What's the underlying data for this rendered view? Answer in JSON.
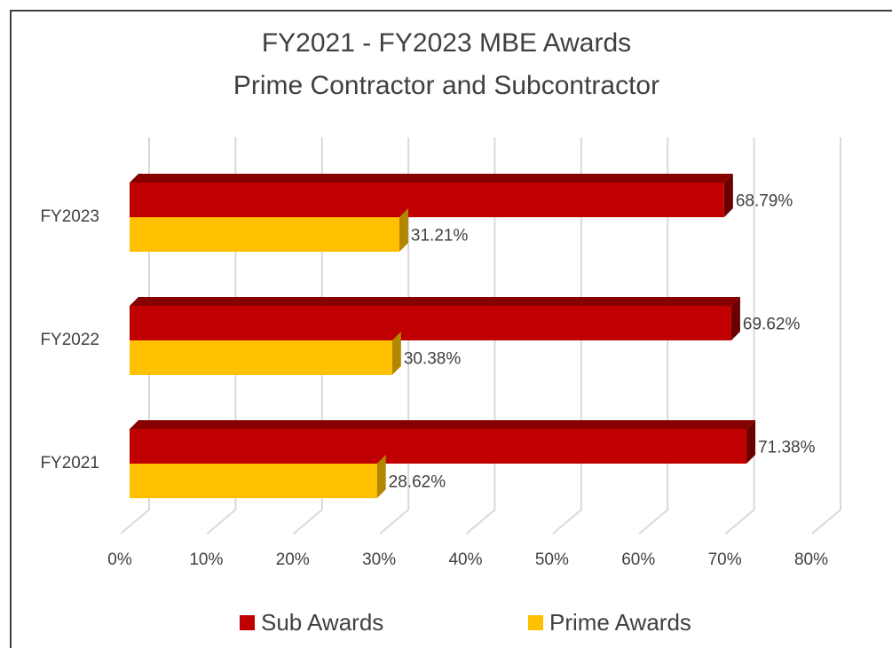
{
  "chart_data": {
    "type": "bar3d_horizontal",
    "title": "FY2021 - FY2023 MBE Awards",
    "subtitle": "Prime Contractor and Subcontractor",
    "categories": [
      "FY2023",
      "FY2022",
      "FY2021"
    ],
    "series": [
      {
        "name": "Sub Awards",
        "color": "#c00000",
        "values": [
          68.79,
          69.62,
          71.38
        ],
        "value_labels": [
          "68.79%",
          "69.62%",
          "71.38%"
        ]
      },
      {
        "name": "Prime Awards",
        "color": "#ffc000",
        "values": [
          31.21,
          30.38,
          28.62
        ],
        "value_labels": [
          "31.21%",
          "30.38%",
          "28.62%"
        ]
      }
    ],
    "xlim": [
      0,
      80
    ],
    "xticks": [
      {
        "value": 0,
        "label": "0%"
      },
      {
        "value": 10,
        "label": "10%"
      },
      {
        "value": 20,
        "label": "20%"
      },
      {
        "value": 30,
        "label": "30%"
      },
      {
        "value": 40,
        "label": "40%"
      },
      {
        "value": 50,
        "label": "50%"
      },
      {
        "value": 60,
        "label": "60%"
      },
      {
        "value": 70,
        "label": "70%"
      },
      {
        "value": 80,
        "label": "80%"
      }
    ],
    "grid": true,
    "legend": "bottom"
  }
}
